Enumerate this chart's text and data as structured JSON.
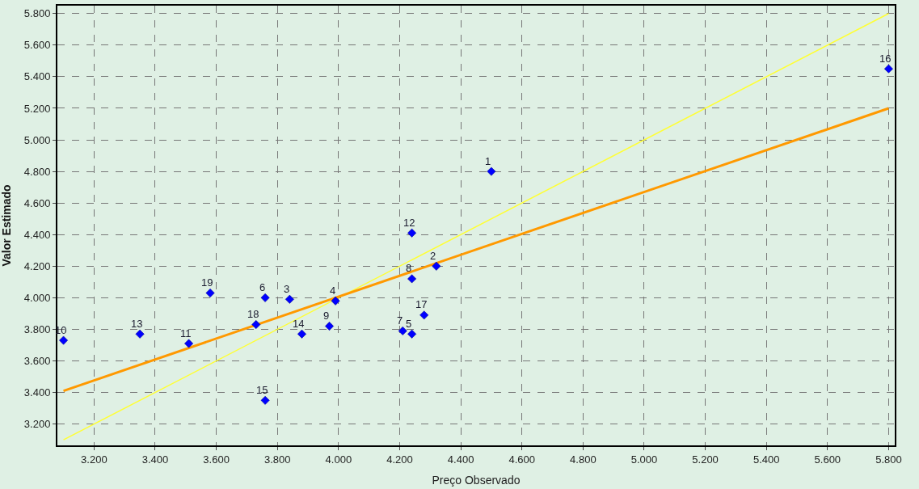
{
  "chart_data": {
    "type": "scatter",
    "xlabel": "Preço Observado",
    "ylabel": "Valor Estimado",
    "series": [
      {
        "type": "line",
        "color": "#ffff33",
        "x": [
          3.1,
          5.8
        ],
        "values": [
          3.1,
          5.8
        ],
        "marker": "none",
        "line_style": "solid"
      },
      {
        "type": "line",
        "color": "#ff9900",
        "x": [
          3.1,
          5.8
        ],
        "values": [
          3.41,
          5.2
        ],
        "marker": "none",
        "line_style": "solid"
      },
      {
        "color": "#0000ff",
        "marker": "diamond",
        "x": [
          4.5,
          4.32,
          3.84,
          3.99,
          4.24,
          3.76,
          4.21,
          4.24,
          3.97,
          3.1,
          3.51,
          4.24,
          3.35,
          3.88,
          3.76,
          5.8,
          4.28,
          3.73,
          3.58
        ],
        "values": [
          4.8,
          4.2,
          3.99,
          3.98,
          3.77,
          4.0,
          3.79,
          4.12,
          3.82,
          3.73,
          3.71,
          4.41,
          3.77,
          3.77,
          3.35,
          5.45,
          3.89,
          3.83,
          4.03
        ]
      }
    ],
    "annotations": [
      {
        "text": "1",
        "x": 4.5,
        "y": 4.8
      },
      {
        "text": "2",
        "x": 4.32,
        "y": 4.2
      },
      {
        "text": "3",
        "x": 3.84,
        "y": 3.99
      },
      {
        "text": "4",
        "x": 3.99,
        "y": 3.98
      },
      {
        "text": "5",
        "x": 4.24,
        "y": 3.77
      },
      {
        "text": "6",
        "x": 3.76,
        "y": 4.0
      },
      {
        "text": "7",
        "x": 4.21,
        "y": 3.79
      },
      {
        "text": "8",
        "x": 4.24,
        "y": 4.12
      },
      {
        "text": "9",
        "x": 3.97,
        "y": 3.82
      },
      {
        "text": "10",
        "x": 3.1,
        "y": 3.73
      },
      {
        "text": "11",
        "x": 3.51,
        "y": 3.71
      },
      {
        "text": "12",
        "x": 4.24,
        "y": 4.41
      },
      {
        "text": "13",
        "x": 3.35,
        "y": 3.77
      },
      {
        "text": "14",
        "x": 3.88,
        "y": 3.77
      },
      {
        "text": "15",
        "x": 3.76,
        "y": 3.35
      },
      {
        "text": "16",
        "x": 5.8,
        "y": 5.45
      },
      {
        "text": "17",
        "x": 4.28,
        "y": 3.89
      },
      {
        "text": "18",
        "x": 3.73,
        "y": 3.83
      },
      {
        "text": "19",
        "x": 3.58,
        "y": 4.03
      }
    ],
    "xlim": [
      3.08,
      5.82
    ],
    "ylim": [
      3.065,
      5.85
    ],
    "xticks": [
      {
        "value": 3.2,
        "label": "3.200"
      },
      {
        "value": 3.4,
        "label": "3.400"
      },
      {
        "value": 3.6,
        "label": "3.600"
      },
      {
        "value": 3.8,
        "label": "3.800"
      },
      {
        "value": 4.0,
        "label": "4.000"
      },
      {
        "value": 4.2,
        "label": "4.200"
      },
      {
        "value": 4.4,
        "label": "4.400"
      },
      {
        "value": 4.6,
        "label": "4.600"
      },
      {
        "value": 4.8,
        "label": "4.800"
      },
      {
        "value": 5.0,
        "label": "5.000"
      },
      {
        "value": 5.2,
        "label": "5.200"
      },
      {
        "value": 5.4,
        "label": "5.400"
      },
      {
        "value": 5.6,
        "label": "5.600"
      },
      {
        "value": 5.8,
        "label": "5.800"
      }
    ],
    "yticks": [
      {
        "value": 3.2,
        "label": "3.200"
      },
      {
        "value": 3.4,
        "label": "3.400"
      },
      {
        "value": 3.6,
        "label": "3.600"
      },
      {
        "value": 3.8,
        "label": "3.800"
      },
      {
        "value": 4.0,
        "label": "4.000"
      },
      {
        "value": 4.2,
        "label": "4.200"
      },
      {
        "value": 4.4,
        "label": "4.400"
      },
      {
        "value": 4.6,
        "label": "4.600"
      },
      {
        "value": 4.8,
        "label": "4.800"
      },
      {
        "value": 5.0,
        "label": "5.000"
      },
      {
        "value": 5.2,
        "label": "5.200"
      },
      {
        "value": 5.4,
        "label": "5.400"
      },
      {
        "value": 5.6,
        "label": "5.600"
      },
      {
        "value": 5.8,
        "label": "5.800"
      }
    ],
    "grid": true
  }
}
